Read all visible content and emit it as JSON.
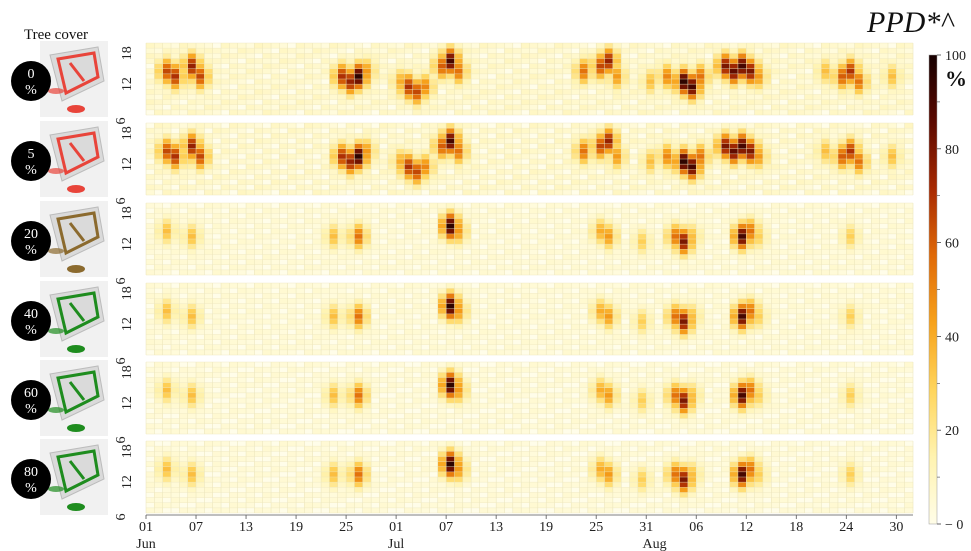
{
  "title": "PPD*^",
  "legend_title": "Tree cover",
  "colorbar": {
    "unit": "%",
    "ticks": [
      "100",
      "80",
      "60",
      "40",
      "20",
      "0"
    ],
    "tick_values": [
      100,
      80,
      60,
      40,
      20,
      0
    ],
    "minor_ticks": [
      10,
      30,
      50,
      70,
      90
    ],
    "colors": [
      "#fffde8",
      "#fff3b0",
      "#ffd55c",
      "#f7a21b",
      "#e06a08",
      "#a82a02",
      "#5c0a00",
      "#160000"
    ]
  },
  "chart_data": {
    "type": "heatmap",
    "title": "PPD*^",
    "x_tick_days": [
      "01",
      "07",
      "13",
      "19",
      "25",
      "01",
      "07",
      "13",
      "19",
      "25",
      "31",
      "06",
      "12",
      "18",
      "24",
      "30"
    ],
    "x_tick_day_index": [
      0,
      6,
      12,
      18,
      24,
      30,
      36,
      42,
      48,
      54,
      60,
      66,
      72,
      78,
      84,
      90
    ],
    "x_months": [
      "Jun",
      "Jul",
      "Aug"
    ],
    "x_month_day_index": [
      0,
      30,
      61
    ],
    "n_days": 92,
    "hour_range": [
      6,
      20
    ],
    "y_ticks_per_panel": [
      "18",
      "12",
      "6"
    ],
    "y_tick_values": [
      18,
      12,
      6
    ],
    "value_range": [
      0,
      100
    ],
    "panels": [
      {
        "label": "0",
        "unit": "%",
        "map_color": "#e8443a",
        "intensity": 1.0,
        "events": [
          [
            2,
            14,
            65
          ],
          [
            3,
            13,
            70
          ],
          [
            5,
            15,
            75
          ],
          [
            6,
            13,
            65
          ],
          [
            23,
            13,
            70
          ],
          [
            24,
            12,
            75
          ],
          [
            25,
            13,
            95
          ],
          [
            26,
            14,
            45
          ],
          [
            35,
            15,
            60
          ],
          [
            36,
            16,
            90
          ],
          [
            37,
            14,
            55
          ],
          [
            52,
            14,
            55
          ],
          [
            54,
            15,
            65
          ],
          [
            55,
            16,
            75
          ],
          [
            56,
            13,
            45
          ],
          [
            60,
            12,
            35
          ],
          [
            62,
            13,
            50
          ],
          [
            64,
            12,
            95
          ],
          [
            65,
            11,
            90
          ],
          [
            66,
            13,
            55
          ],
          [
            69,
            15,
            80
          ],
          [
            70,
            14,
            85
          ],
          [
            71,
            15,
            90
          ],
          [
            72,
            14,
            80
          ],
          [
            73,
            13,
            45
          ],
          [
            81,
            14,
            35
          ],
          [
            83,
            13,
            60
          ],
          [
            84,
            14,
            70
          ],
          [
            85,
            12,
            55
          ],
          [
            89,
            13,
            35
          ],
          [
            31,
            11,
            70
          ],
          [
            32,
            10,
            65
          ],
          [
            33,
            11,
            50
          ],
          [
            30,
            12,
            40
          ]
        ]
      },
      {
        "label": "5",
        "unit": "%",
        "map_color": "#e8443a",
        "intensity": 0.97,
        "events": [
          [
            2,
            14,
            65
          ],
          [
            3,
            13,
            70
          ],
          [
            5,
            15,
            75
          ],
          [
            6,
            13,
            65
          ],
          [
            23,
            13,
            70
          ],
          [
            24,
            12,
            75
          ],
          [
            25,
            13,
            95
          ],
          [
            26,
            14,
            45
          ],
          [
            35,
            15,
            60
          ],
          [
            36,
            16,
            90
          ],
          [
            37,
            14,
            55
          ],
          [
            52,
            14,
            55
          ],
          [
            54,
            15,
            65
          ],
          [
            55,
            16,
            75
          ],
          [
            56,
            13,
            45
          ],
          [
            60,
            12,
            35
          ],
          [
            62,
            13,
            50
          ],
          [
            64,
            12,
            95
          ],
          [
            65,
            11,
            90
          ],
          [
            66,
            13,
            55
          ],
          [
            69,
            15,
            80
          ],
          [
            70,
            14,
            85
          ],
          [
            71,
            15,
            90
          ],
          [
            72,
            14,
            80
          ],
          [
            73,
            13,
            45
          ],
          [
            81,
            14,
            35
          ],
          [
            83,
            13,
            60
          ],
          [
            84,
            14,
            70
          ],
          [
            85,
            12,
            55
          ],
          [
            89,
            13,
            35
          ],
          [
            31,
            11,
            70
          ],
          [
            32,
            10,
            65
          ],
          [
            33,
            11,
            50
          ],
          [
            30,
            12,
            40
          ]
        ]
      },
      {
        "label": "20",
        "unit": "%",
        "map_color": "#8b6a2e",
        "intensity": 0.55,
        "events": [
          [
            2,
            14,
            35
          ],
          [
            5,
            13,
            35
          ],
          [
            22,
            13,
            35
          ],
          [
            25,
            13,
            55
          ],
          [
            36,
            15,
            95
          ],
          [
            37,
            14,
            45
          ],
          [
            54,
            14,
            40
          ],
          [
            55,
            13,
            45
          ],
          [
            59,
            12,
            30
          ],
          [
            63,
            13,
            55
          ],
          [
            64,
            12,
            80
          ],
          [
            65,
            13,
            35
          ],
          [
            71,
            13,
            90
          ],
          [
            72,
            14,
            55
          ],
          [
            73,
            13,
            30
          ],
          [
            84,
            13,
            30
          ]
        ]
      },
      {
        "label": "40",
        "unit": "%",
        "map_color": "#1e8c1e",
        "intensity": 0.5,
        "events": [
          [
            2,
            14,
            35
          ],
          [
            5,
            13,
            35
          ],
          [
            22,
            13,
            35
          ],
          [
            25,
            13,
            55
          ],
          [
            36,
            15,
            95
          ],
          [
            37,
            14,
            45
          ],
          [
            54,
            14,
            40
          ],
          [
            55,
            13,
            45
          ],
          [
            59,
            12,
            30
          ],
          [
            63,
            13,
            55
          ],
          [
            64,
            12,
            80
          ],
          [
            65,
            13,
            35
          ],
          [
            71,
            13,
            90
          ],
          [
            72,
            14,
            55
          ],
          [
            73,
            13,
            30
          ],
          [
            84,
            13,
            30
          ]
        ]
      },
      {
        "label": "60",
        "unit": "%",
        "map_color": "#1e8c1e",
        "intensity": 0.48,
        "events": [
          [
            2,
            14,
            35
          ],
          [
            5,
            13,
            35
          ],
          [
            22,
            13,
            35
          ],
          [
            25,
            13,
            55
          ],
          [
            36,
            15,
            95
          ],
          [
            37,
            14,
            45
          ],
          [
            54,
            14,
            40
          ],
          [
            55,
            13,
            45
          ],
          [
            59,
            12,
            30
          ],
          [
            63,
            13,
            55
          ],
          [
            64,
            12,
            80
          ],
          [
            65,
            13,
            35
          ],
          [
            71,
            13,
            90
          ],
          [
            72,
            14,
            55
          ],
          [
            73,
            13,
            30
          ],
          [
            84,
            13,
            30
          ]
        ]
      },
      {
        "label": "80",
        "unit": "%",
        "map_color": "#1e8c1e",
        "intensity": 0.46,
        "events": [
          [
            2,
            14,
            35
          ],
          [
            5,
            13,
            35
          ],
          [
            22,
            13,
            35
          ],
          [
            25,
            13,
            55
          ],
          [
            36,
            15,
            95
          ],
          [
            37,
            14,
            45
          ],
          [
            54,
            14,
            40
          ],
          [
            55,
            13,
            45
          ],
          [
            59,
            12,
            30
          ],
          [
            63,
            13,
            55
          ],
          [
            64,
            12,
            80
          ],
          [
            65,
            13,
            35
          ],
          [
            71,
            13,
            90
          ],
          [
            72,
            14,
            55
          ],
          [
            73,
            13,
            30
          ],
          [
            84,
            13,
            30
          ]
        ]
      }
    ]
  }
}
